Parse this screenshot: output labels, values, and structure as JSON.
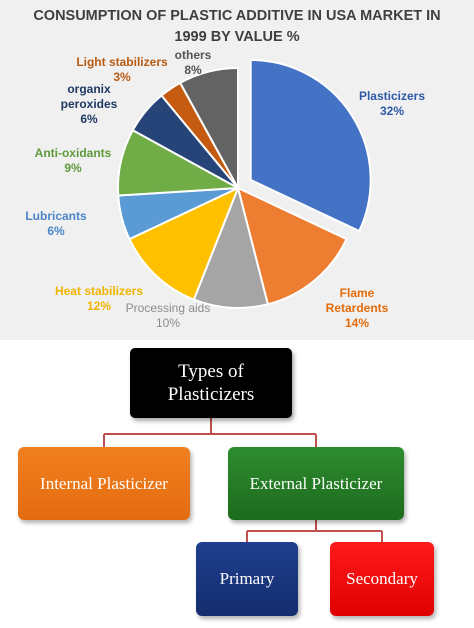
{
  "chart_data": {
    "type": "pie",
    "title_lines": [
      "CONSUMPTION OF PLASTIC ADDITIVE IN USA MARKET IN",
      "1999 BY VALUE %"
    ],
    "slices": [
      {
        "name": "Plasticizers",
        "label_lines": [
          "Plasticizers"
        ],
        "value": 32,
        "value_label": "32%",
        "color": "#4472c4",
        "label_color": "#2e5aa8",
        "exploded": true
      },
      {
        "name": "Flame Retardents",
        "label_lines": [
          "Flame",
          "Retardents"
        ],
        "value": 14,
        "value_label": "14%",
        "color": "#ed7d31",
        "label_color": "#e46c0a",
        "exploded": false
      },
      {
        "name": "Processing aids",
        "label_lines": [
          "Processing aids"
        ],
        "value": 10,
        "value_label": "10%",
        "color": "#a5a5a5",
        "label_color": "#8c8c8c",
        "exploded": false
      },
      {
        "name": "Heat stabilizers",
        "label_lines": [
          "Heat stabilizers"
        ],
        "value": 12,
        "value_label": "12%",
        "color": "#ffc000",
        "label_color": "#f0b400",
        "exploded": false
      },
      {
        "name": "Lubricants",
        "label_lines": [
          "Lubricants"
        ],
        "value": 6,
        "value_label": "6%",
        "color": "#5b9bd5",
        "label_color": "#4a86c8",
        "exploded": false
      },
      {
        "name": "Anti-oxidants",
        "label_lines": [
          "Anti-oxidants"
        ],
        "value": 9,
        "value_label": "9%",
        "color": "#70ad47",
        "label_color": "#5f9a3a",
        "exploded": false
      },
      {
        "name": "organix peroxides",
        "label_lines": [
          "organix",
          "peroxides"
        ],
        "value": 6,
        "value_label": "6%",
        "color": "#264478",
        "label_color": "#1f3864",
        "exploded": false
      },
      {
        "name": "Light stabilizers",
        "label_lines": [
          "Light stabilizers"
        ],
        "value": 3,
        "value_label": "3%",
        "color": "#c55a11",
        "label_color": "#b85a10",
        "exploded": false
      },
      {
        "name": "others",
        "label_lines": [
          "others"
        ],
        "value": 8,
        "value_label": "8%",
        "color": "#636363",
        "label_color": "#555555",
        "exploded": false
      }
    ]
  },
  "diagram": {
    "root": {
      "label_lines": [
        "Types of",
        "Plasticizers"
      ]
    },
    "internal": {
      "label": "Internal Plasticizer"
    },
    "external": {
      "label": "External Plasticizer"
    },
    "primary": {
      "label": "Primary"
    },
    "secondary": {
      "label": "Secondary"
    },
    "connector_color": "#c0504d"
  }
}
